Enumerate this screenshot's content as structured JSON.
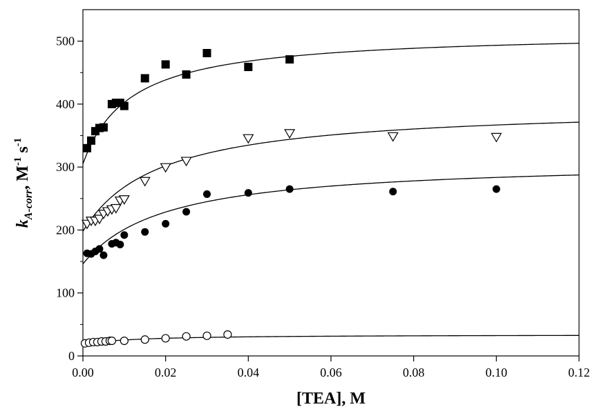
{
  "chart_data": {
    "type": "scatter",
    "title": "",
    "xlabel": "[TEA], M",
    "ylabel": {
      "symbol": "k",
      "subscript": "A-corr",
      "unit_main": ", M",
      "unit_exp1": "-1",
      "unit_s": " s",
      "unit_exp2": "-1"
    },
    "xlim": [
      0,
      0.12
    ],
    "ylim": [
      0,
      550
    ],
    "x_ticks": [
      0.0,
      0.02,
      0.04,
      0.06,
      0.08,
      0.1,
      0.12
    ],
    "x_tick_labels": [
      "0.00",
      "0.02",
      "0.04",
      "0.06",
      "0.08",
      "0.10",
      "0.12"
    ],
    "y_ticks": [
      0,
      100,
      200,
      300,
      400,
      500
    ],
    "y_tick_labels": [
      "0",
      "100",
      "200",
      "300",
      "400",
      "500"
    ],
    "grid": false,
    "legend": "none",
    "series": [
      {
        "marker": "filled-square",
        "x": [
          0.001,
          0.002,
          0.003,
          0.004,
          0.005,
          0.007,
          0.008,
          0.009,
          0.01,
          0.015,
          0.02,
          0.025,
          0.03,
          0.04,
          0.05
        ],
        "y": [
          330,
          342,
          357,
          362,
          363,
          400,
          402,
          402,
          397,
          441,
          463,
          447,
          481,
          459,
          471
        ],
        "fit": {
          "y0": 305,
          "a": 210,
          "b": 0.0115
        }
      },
      {
        "marker": "open-triangle-down",
        "x": [
          0.001,
          0.002,
          0.003,
          0.004,
          0.005,
          0.006,
          0.007,
          0.008,
          0.009,
          0.01,
          0.015,
          0.02,
          0.025,
          0.04,
          0.05,
          0.075,
          0.1
        ],
        "y": [
          210,
          215,
          215,
          218,
          226,
          230,
          233,
          235,
          247,
          249,
          278,
          300,
          310,
          346,
          354,
          349,
          348
        ],
        "fit": {
          "y0": 198,
          "a": 200,
          "b": 0.0185
        }
      },
      {
        "marker": "filled-circle",
        "x": [
          0.001,
          0.002,
          0.003,
          0.004,
          0.005,
          0.007,
          0.008,
          0.009,
          0.01,
          0.015,
          0.02,
          0.025,
          0.03,
          0.04,
          0.05,
          0.075,
          0.1
        ],
        "y": [
          163,
          162,
          166,
          170,
          160,
          178,
          180,
          177,
          192,
          197,
          210,
          229,
          257,
          259,
          265,
          261,
          265
        ],
        "fit": {
          "y0": 146,
          "a": 165,
          "b": 0.02
        }
      },
      {
        "marker": "open-circle",
        "x": [
          0.0005,
          0.0015,
          0.0025,
          0.0035,
          0.0045,
          0.0055,
          0.0065,
          0.007,
          0.01,
          0.015,
          0.02,
          0.025,
          0.03,
          0.035
        ],
        "y": [
          20,
          21,
          22,
          22,
          23,
          23,
          24,
          24,
          24,
          26,
          28,
          31,
          32,
          34
        ],
        "fit": {
          "y0": 18,
          "a": 16,
          "b": 0.012
        }
      }
    ],
    "colors": {
      "axis": "#000000",
      "marker": "#000000",
      "line": "#000000"
    }
  }
}
